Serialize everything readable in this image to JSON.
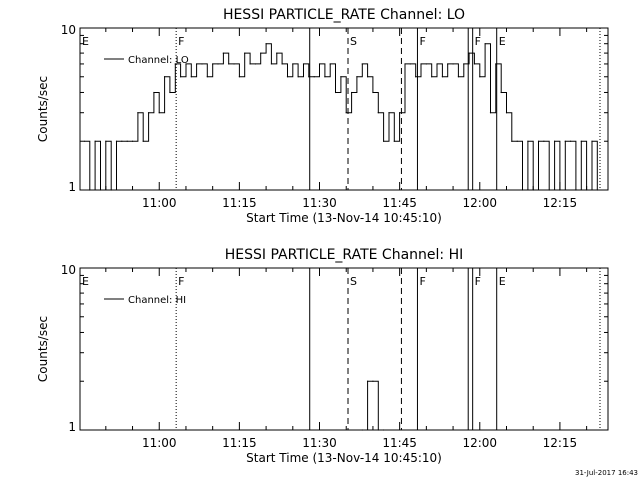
{
  "footer": {
    "datestamp": "31-Jul-2017 16:43"
  },
  "chart_data": [
    {
      "type": "line",
      "title": "HESSI PARTICLE_RATE Channel: LO",
      "xlabel": "Start Time (13-Nov-14 10:45:10)",
      "ylabel": "Counts/sec",
      "yscale": "log",
      "ylim": [
        1,
        10
      ],
      "xlim": [
        "10:45:10",
        "12:24:00"
      ],
      "ytick_labels": [
        "1",
        "10"
      ],
      "xtick_labels": [
        "11:00",
        "11:15",
        "11:30",
        "11:45",
        "12:00",
        "12:15"
      ],
      "grid": false,
      "legend": {
        "placement": "top-left",
        "entries": [
          "Channel: LO"
        ]
      },
      "markers": [
        {
          "label": "E",
          "time": "10:45:10",
          "style": "solid"
        },
        {
          "label": "F",
          "time": "11:03:10",
          "style": "dotted"
        },
        {
          "label": "",
          "time": "11:28:10",
          "style": "solid"
        },
        {
          "label": "S",
          "time": "11:35:20",
          "style": "dashed"
        },
        {
          "label": "",
          "time": "11:45:20",
          "style": "dashed"
        },
        {
          "label": "F",
          "time": "11:48:20",
          "style": "solid"
        },
        {
          "label": "",
          "time": "11:57:50",
          "style": "solid"
        },
        {
          "label": "F",
          "time": "11:58:40",
          "style": "solid"
        },
        {
          "label": "E",
          "time": "12:03:10",
          "style": "solid"
        },
        {
          "label": "",
          "time": "12:22:30",
          "style": "dotted"
        }
      ],
      "series": [
        {
          "name": "Channel: LO",
          "x": [
            "10:46:00",
            "10:47:00",
            "10:48:00",
            "10:49:00",
            "10:50:00",
            "10:51:00",
            "10:52:00",
            "10:53:00",
            "10:54:00",
            "10:55:00",
            "10:56:00",
            "10:57:00",
            "10:58:00",
            "10:59:00",
            "11:00:00",
            "11:01:00",
            "11:02:00",
            "11:03:00",
            "11:04:00",
            "11:05:00",
            "11:06:00",
            "11:07:00",
            "11:08:00",
            "11:09:00",
            "11:10:00",
            "11:11:00",
            "11:12:00",
            "11:13:00",
            "11:14:00",
            "11:15:00",
            "11:16:00",
            "11:17:00",
            "11:18:00",
            "11:19:00",
            "11:20:00",
            "11:21:00",
            "11:22:00",
            "11:23:00",
            "11:24:00",
            "11:25:00",
            "11:26:00",
            "11:27:00",
            "11:28:00",
            "11:29:00",
            "11:30:00",
            "11:31:00",
            "11:32:00",
            "11:33:00",
            "11:34:00",
            "11:35:00",
            "11:36:00",
            "11:37:00",
            "11:38:00",
            "11:39:00",
            "11:40:00",
            "11:41:00",
            "11:42:00",
            "11:43:00",
            "11:44:00",
            "11:45:00",
            "11:46:00",
            "11:47:00",
            "11:48:00",
            "11:49:00",
            "11:50:00",
            "11:51:00",
            "11:52:00",
            "11:53:00",
            "11:54:00",
            "11:55:00",
            "11:56:00",
            "11:57:00",
            "11:58:00",
            "11:59:00",
            "12:00:00",
            "12:01:00",
            "12:02:00",
            "12:03:00",
            "12:04:00",
            "12:05:00",
            "12:06:00",
            "12:07:00",
            "12:08:00",
            "12:09:00",
            "12:10:00",
            "12:11:00",
            "12:12:00",
            "12:13:00",
            "12:14:00",
            "12:15:00",
            "12:16:00",
            "12:17:00",
            "12:18:00",
            "12:19:00",
            "12:20:00",
            "12:21:00",
            "12:22:00"
          ],
          "y": [
            2,
            1,
            2,
            1,
            2,
            1,
            2,
            2,
            2,
            2,
            3,
            2,
            3,
            4,
            3,
            5,
            4,
            6,
            5,
            6,
            5,
            6,
            6,
            5,
            6,
            6,
            7,
            6,
            6,
            5,
            7,
            6,
            6,
            7,
            8,
            6,
            7,
            6,
            5,
            6,
            5,
            6,
            5,
            5,
            6,
            5,
            6,
            4,
            5,
            3,
            4,
            5,
            6,
            5,
            4,
            3,
            2,
            3,
            2,
            3,
            6,
            6,
            5,
            6,
            6,
            5,
            6,
            5,
            6,
            6,
            5,
            6,
            7,
            6,
            5,
            8,
            3,
            6,
            4,
            3,
            2,
            2,
            1,
            2,
            1,
            2,
            2,
            1,
            2,
            1,
            2,
            2,
            1,
            2,
            1,
            2,
            1
          ]
        }
      ]
    },
    {
      "type": "line",
      "title": "HESSI PARTICLE_RATE Channel: HI",
      "xlabel": "Start Time (13-Nov-14 10:45:10)",
      "ylabel": "Counts/sec",
      "yscale": "log",
      "ylim": [
        1,
        10
      ],
      "xlim": [
        "10:45:10",
        "12:24:00"
      ],
      "ytick_labels": [
        "1",
        "10"
      ],
      "xtick_labels": [
        "11:00",
        "11:15",
        "11:30",
        "11:45",
        "12:00",
        "12:15"
      ],
      "grid": false,
      "legend": {
        "placement": "top-left",
        "entries": [
          "Channel: HI"
        ]
      },
      "markers": [
        {
          "label": "E",
          "time": "10:45:10",
          "style": "solid"
        },
        {
          "label": "F",
          "time": "11:03:10",
          "style": "dotted"
        },
        {
          "label": "",
          "time": "11:28:10",
          "style": "solid"
        },
        {
          "label": "S",
          "time": "11:35:20",
          "style": "dashed"
        },
        {
          "label": "",
          "time": "11:45:20",
          "style": "dashed"
        },
        {
          "label": "F",
          "time": "11:48:20",
          "style": "solid"
        },
        {
          "label": "",
          "time": "11:57:50",
          "style": "solid"
        },
        {
          "label": "F",
          "time": "11:58:40",
          "style": "solid"
        },
        {
          "label": "E",
          "time": "12:03:10",
          "style": "solid"
        },
        {
          "label": "",
          "time": "12:22:30",
          "style": "dotted"
        }
      ],
      "series": [
        {
          "name": "Channel: HI",
          "x": [
            "11:38:00",
            "11:39:00",
            "11:40:00",
            "11:41:00",
            "11:42:00"
          ],
          "y": [
            1,
            2,
            2,
            1,
            1
          ]
        }
      ]
    }
  ]
}
